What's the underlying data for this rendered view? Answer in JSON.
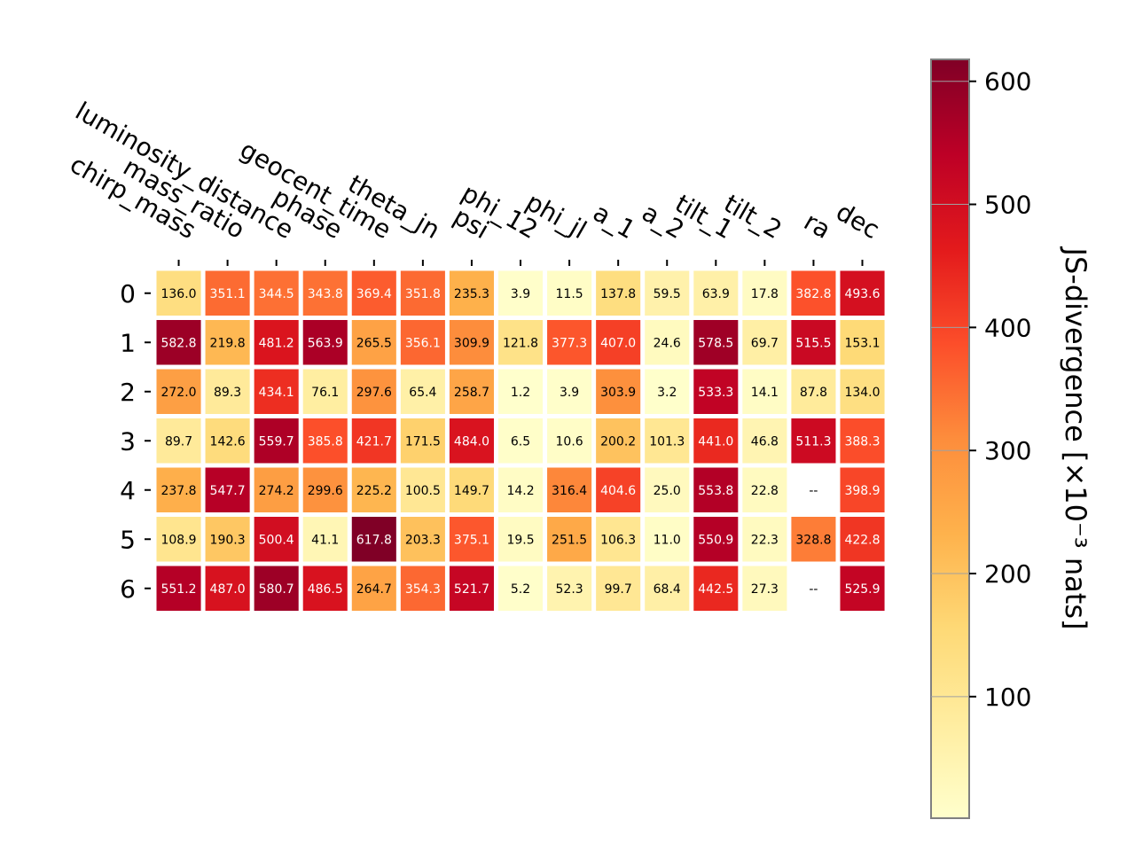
{
  "chart_data": {
    "type": "heatmap",
    "columns": [
      "chirp_mass",
      "mass_ratio",
      "luminosity_distance",
      "phase",
      "geocent_time",
      "theta_jn",
      "psi",
      "phi_12",
      "phi_jl",
      "a_1",
      "a_2",
      "tilt_1",
      "tilt_2",
      "ra",
      "dec"
    ],
    "rows": [
      "0",
      "1",
      "2",
      "3",
      "4",
      "5",
      "6"
    ],
    "values": [
      [
        136.0,
        351.1,
        344.5,
        343.8,
        369.4,
        351.8,
        235.3,
        3.9,
        11.5,
        137.8,
        59.5,
        63.9,
        17.8,
        382.8,
        493.6
      ],
      [
        582.8,
        219.8,
        481.2,
        563.9,
        265.5,
        356.1,
        309.9,
        121.8,
        377.3,
        407.0,
        24.6,
        578.5,
        69.7,
        515.5,
        153.1
      ],
      [
        272.0,
        89.3,
        434.1,
        76.1,
        297.6,
        65.4,
        258.7,
        1.2,
        3.9,
        303.9,
        3.2,
        533.3,
        14.1,
        87.8,
        134.0
      ],
      [
        89.7,
        142.6,
        559.7,
        385.8,
        421.7,
        171.5,
        484.0,
        6.5,
        10.6,
        200.2,
        101.3,
        441.0,
        46.8,
        511.3,
        388.3
      ],
      [
        237.8,
        547.7,
        274.2,
        299.6,
        225.2,
        100.5,
        149.7,
        14.2,
        316.4,
        404.6,
        25.0,
        553.8,
        22.8,
        null,
        398.9
      ],
      [
        108.9,
        190.3,
        500.4,
        41.1,
        617.8,
        203.3,
        375.1,
        19.5,
        251.5,
        106.3,
        11.0,
        550.9,
        22.3,
        328.8,
        422.8
      ],
      [
        551.2,
        487.0,
        580.7,
        486.5,
        264.7,
        354.3,
        521.7,
        5.2,
        52.3,
        99.7,
        68.4,
        442.5,
        27.3,
        null,
        525.9
      ]
    ],
    "missing_label": "--",
    "colorbar": {
      "label": "JS-divergence [×10⁻³ nats]",
      "ticks": [
        100,
        200,
        300,
        400,
        500,
        600
      ],
      "range": [
        1.2,
        617.8
      ],
      "colormap": "YlOrRd"
    },
    "colors": {
      "low": "#ffffcc",
      "high": "#800026",
      "cell_edge": "#ffffff"
    }
  }
}
